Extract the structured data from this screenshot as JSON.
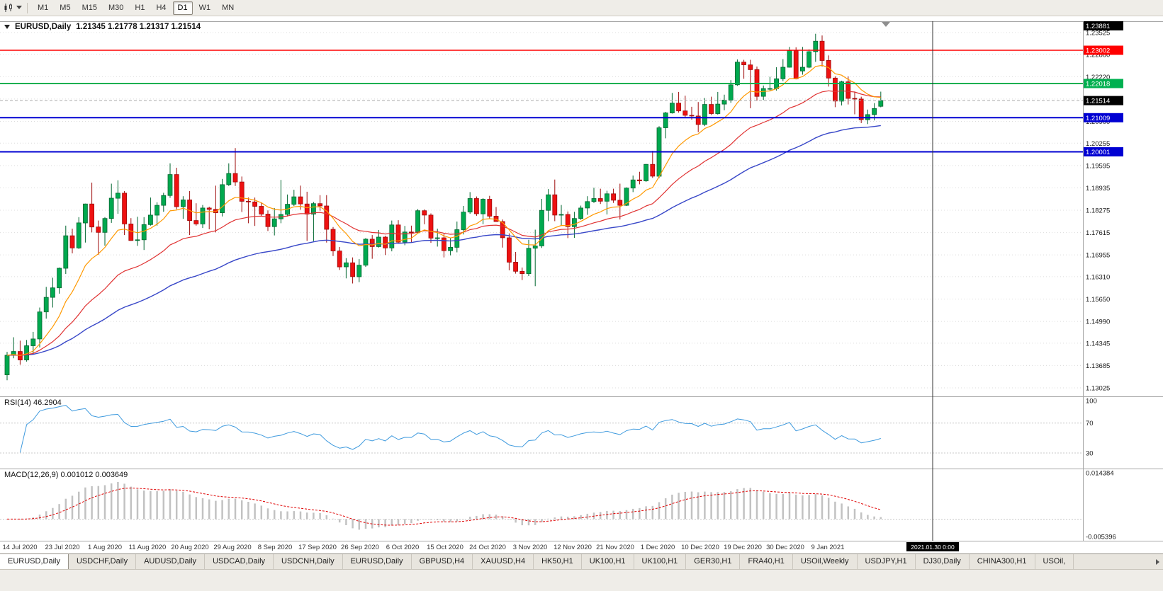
{
  "toolbar": {
    "timeframes": [
      "M1",
      "M5",
      "M15",
      "M30",
      "H1",
      "H4",
      "D1",
      "W1",
      "MN"
    ],
    "active_timeframe": "D1"
  },
  "chart_header": {
    "symbol_title": "EURUSD,Daily",
    "ohlc_text": "1.21345 1.21778 1.21317 1.21514"
  },
  "price_scale": {
    "top_badge": "1.23881",
    "current_price_badge": "1.21514"
  },
  "indicator_labels": {
    "rsi": "RSI(14) 46.2904",
    "macd": "MACD(12,26,9) 0.001012 0.003649",
    "rsi_scale": [
      "100",
      "70",
      "30"
    ],
    "macd_scale_top": "0.014384",
    "macd_scale_bottom": "-0.005396"
  },
  "event_marker": {
    "label": "2021.01.30 0:00"
  },
  "tabs": {
    "active_index": 0,
    "items": [
      "EURUSD,Daily",
      "USDCHF,Daily",
      "AUDUSD,Daily",
      "USDCAD,Daily",
      "USDCNH,Daily",
      "EURUSD,Daily",
      "GBPUSD,H4",
      "XAUUSD,H4",
      "HK50,H1",
      "UK100,H1",
      "UK100,H1",
      "GER30,H1",
      "FRA40,H1",
      "USOil,Weekly",
      "USDJPY,H1",
      "DJ30,Daily",
      "CHINA300,H1",
      "USOil,"
    ]
  },
  "theme": {
    "up": "#00A94F",
    "down": "#EE1111",
    "ma_fast": "#FF9900",
    "ma_mid": "#E03232",
    "ma_slow": "#3847C8",
    "rsi_line": "#3E9ADE",
    "macd_signal": "#DF0000",
    "macd_histogram": "#C2C2C2",
    "level_red": "#FF0000",
    "level_green": "#00B050",
    "level_blue": "#0000D2"
  },
  "chart_data": {
    "type": "candlestick",
    "symbol": "EURUSD",
    "timeframe": "Daily",
    "title_ohlc": {
      "open": 1.21345,
      "high": 1.21778,
      "low": 1.21317,
      "close": 1.21514
    },
    "current_price": 1.21514,
    "y_view_range": [
      1.1278,
      1.2392
    ],
    "y_tick_labels": [
      "1.23525",
      "1.22880",
      "1.22220",
      "1.21560",
      "1.20900",
      "1.20255",
      "1.19595",
      "1.18935",
      "1.18275",
      "1.17615",
      "1.16955",
      "1.16310",
      "1.15650",
      "1.14990",
      "1.14345",
      "1.13685",
      "1.13025"
    ],
    "x_tick_labels": [
      "14 Jul 2020",
      "23 Jul 2020",
      "1 Aug 2020",
      "11 Aug 2020",
      "20 Aug 2020",
      "29 Aug 2020",
      "8 Sep 2020",
      "17 Sep 2020",
      "26 Sep 2020",
      "6 Oct 2020",
      "15 Oct 2020",
      "24 Oct 2020",
      "3 Nov 2020",
      "12 Nov 2020",
      "21 Nov 2020",
      "1 Dec 2020",
      "10 Dec 2020",
      "19 Dec 2020",
      "30 Dec 2020",
      "9 Jan 2021"
    ],
    "level_lines": [
      {
        "label": "1.23002",
        "price": 1.23002,
        "color": "#FF0000",
        "width": 1.4
      },
      {
        "label": "1.22018",
        "price": 1.22018,
        "color": "#00B050",
        "width": 2
      },
      {
        "label": "1.21009",
        "price": 1.21009,
        "color": "#0000D2",
        "width": 2
      },
      {
        "label": "1.20001",
        "price": 1.20001,
        "color": "#0000D2",
        "width": 2
      }
    ],
    "indicators": {
      "rsi": {
        "period": 14,
        "current": 46.2904
      },
      "macd": {
        "fast": 12,
        "slow": 26,
        "signal": 9,
        "macd_current": 0.001012,
        "signal_current": 0.003649,
        "scale_max": 0.014384,
        "scale_min": -0.005396
      },
      "moving_averages": [
        {
          "type": "ema",
          "period": 10,
          "color": "#FF9900"
        },
        {
          "type": "ema",
          "period": 25,
          "color": "#E03232"
        },
        {
          "type": "ema",
          "period": 55,
          "color": "#3847C8"
        }
      ]
    },
    "candles": [
      [
        "2020-07-14",
        1.1341,
        1.1409,
        1.1325,
        1.1399
      ],
      [
        "2020-07-15",
        1.1399,
        1.1452,
        1.139,
        1.141
      ],
      [
        "2020-07-16",
        1.141,
        1.1442,
        1.1371,
        1.1385
      ],
      [
        "2020-07-17",
        1.1385,
        1.1444,
        1.138,
        1.1427
      ],
      [
        "2020-07-20",
        1.1427,
        1.1468,
        1.1402,
        1.1447
      ],
      [
        "2020-07-21",
        1.1447,
        1.154,
        1.1422,
        1.1527
      ],
      [
        "2020-07-22",
        1.1527,
        1.1601,
        1.1507,
        1.157
      ],
      [
        "2020-07-23",
        1.157,
        1.1628,
        1.154,
        1.1598
      ],
      [
        "2020-07-24",
        1.1598,
        1.1658,
        1.1581,
        1.1656
      ],
      [
        "2020-07-27",
        1.1656,
        1.1782,
        1.1639,
        1.1752
      ],
      [
        "2020-07-28",
        1.1752,
        1.1773,
        1.17,
        1.1716
      ],
      [
        "2020-07-29",
        1.1716,
        1.1807,
        1.1713,
        1.179
      ],
      [
        "2020-07-30",
        1.179,
        1.1847,
        1.1732,
        1.1846
      ],
      [
        "2020-07-31",
        1.1846,
        1.1909,
        1.1762,
        1.1778
      ],
      [
        "2020-08-03",
        1.1778,
        1.1797,
        1.1696,
        1.1762
      ],
      [
        "2020-08-04",
        1.1762,
        1.1807,
        1.1723,
        1.1803
      ],
      [
        "2020-08-05",
        1.1803,
        1.1906,
        1.179,
        1.1863
      ],
      [
        "2020-08-06",
        1.1863,
        1.1916,
        1.1817,
        1.1878
      ],
      [
        "2020-08-07",
        1.1878,
        1.1884,
        1.1754,
        1.1787
      ],
      [
        "2020-08-10",
        1.1787,
        1.1804,
        1.1737,
        1.1738
      ],
      [
        "2020-08-11",
        1.1738,
        1.1808,
        1.1722,
        1.174
      ],
      [
        "2020-08-12",
        1.174,
        1.1807,
        1.171,
        1.1785
      ],
      [
        "2020-08-13",
        1.1785,
        1.1865,
        1.1782,
        1.1813
      ],
      [
        "2020-08-14",
        1.1813,
        1.1851,
        1.1782,
        1.1842
      ],
      [
        "2020-08-17",
        1.1842,
        1.1879,
        1.1823,
        1.1871
      ],
      [
        "2020-08-18",
        1.1871,
        1.1966,
        1.1864,
        1.1933
      ],
      [
        "2020-08-19",
        1.1933,
        1.1953,
        1.183,
        1.1838
      ],
      [
        "2020-08-20",
        1.1838,
        1.1869,
        1.1802,
        1.1858
      ],
      [
        "2020-08-21",
        1.1858,
        1.1884,
        1.1754,
        1.1797
      ],
      [
        "2020-08-24",
        1.1797,
        1.1848,
        1.1782,
        1.1787
      ],
      [
        "2020-08-25",
        1.1787,
        1.1843,
        1.1775,
        1.1834
      ],
      [
        "2020-08-26",
        1.1834,
        1.1838,
        1.1771,
        1.183
      ],
      [
        "2020-08-27",
        1.183,
        1.19,
        1.1762,
        1.182
      ],
      [
        "2020-08-28",
        1.182,
        1.192,
        1.1809,
        1.1903
      ],
      [
        "2020-08-31",
        1.1903,
        1.1966,
        1.1899,
        1.1936
      ],
      [
        "2020-09-01",
        1.1936,
        1.2011,
        1.1899,
        1.1911
      ],
      [
        "2020-09-02",
        1.1911,
        1.1927,
        1.1822,
        1.1854
      ],
      [
        "2020-09-03",
        1.1854,
        1.1865,
        1.1789,
        1.1852
      ],
      [
        "2020-09-04",
        1.1852,
        1.1865,
        1.1781,
        1.1839
      ],
      [
        "2020-09-07",
        1.1839,
        1.1849,
        1.1809,
        1.1816
      ],
      [
        "2020-09-08",
        1.1816,
        1.1827,
        1.1766,
        1.1779
      ],
      [
        "2020-09-09",
        1.1779,
        1.1834,
        1.1753,
        1.1802
      ],
      [
        "2020-09-10",
        1.1802,
        1.1917,
        1.1789,
        1.1815
      ],
      [
        "2020-09-11",
        1.1815,
        1.1874,
        1.1809,
        1.1845
      ],
      [
        "2020-09-14",
        1.1845,
        1.1888,
        1.184,
        1.1867
      ],
      [
        "2020-09-15",
        1.1867,
        1.19,
        1.1829,
        1.1846
      ],
      [
        "2020-09-16",
        1.1846,
        1.1882,
        1.1737,
        1.1816
      ],
      [
        "2020-09-17",
        1.1816,
        1.1852,
        1.1736,
        1.1847
      ],
      [
        "2020-09-18",
        1.1847,
        1.1872,
        1.1826,
        1.184
      ],
      [
        "2020-09-21",
        1.184,
        1.1872,
        1.1732,
        1.1771
      ],
      [
        "2020-09-22",
        1.1771,
        1.1778,
        1.1692,
        1.1707
      ],
      [
        "2020-09-23",
        1.1707,
        1.1719,
        1.1651,
        1.166
      ],
      [
        "2020-09-24",
        1.166,
        1.1686,
        1.1626,
        1.1672
      ],
      [
        "2020-09-25",
        1.1672,
        1.1688,
        1.1611,
        1.1631
      ],
      [
        "2020-09-28",
        1.1631,
        1.1683,
        1.1615,
        1.1665
      ],
      [
        "2020-09-29",
        1.1665,
        1.1745,
        1.166,
        1.1742
      ],
      [
        "2020-09-30",
        1.1742,
        1.1754,
        1.1684,
        1.172
      ],
      [
        "2020-10-01",
        1.172,
        1.1769,
        1.1717,
        1.1748
      ],
      [
        "2020-10-02",
        1.1748,
        1.1752,
        1.1695,
        1.1716
      ],
      [
        "2020-10-05",
        1.1716,
        1.1797,
        1.1706,
        1.1784
      ],
      [
        "2020-10-06",
        1.1784,
        1.1798,
        1.173,
        1.1733
      ],
      [
        "2020-10-07",
        1.1733,
        1.1781,
        1.1724,
        1.1763
      ],
      [
        "2020-10-08",
        1.1763,
        1.1782,
        1.1732,
        1.1761
      ],
      [
        "2020-10-09",
        1.1761,
        1.1831,
        1.1759,
        1.1826
      ],
      [
        "2020-10-12",
        1.1826,
        1.183,
        1.1786,
        1.1813
      ],
      [
        "2020-10-13",
        1.1813,
        1.1818,
        1.1731,
        1.1745
      ],
      [
        "2020-10-14",
        1.1745,
        1.1773,
        1.172,
        1.1746
      ],
      [
        "2020-10-15",
        1.1746,
        1.1758,
        1.1688,
        1.1708
      ],
      [
        "2020-10-16",
        1.1708,
        1.1747,
        1.1694,
        1.1718
      ],
      [
        "2020-10-19",
        1.1718,
        1.1794,
        1.1703,
        1.177
      ],
      [
        "2020-10-20",
        1.177,
        1.184,
        1.1756,
        1.1822
      ],
      [
        "2020-10-21",
        1.1822,
        1.1881,
        1.1817,
        1.1862
      ],
      [
        "2020-10-22",
        1.1862,
        1.1868,
        1.1811,
        1.1817
      ],
      [
        "2020-10-23",
        1.1817,
        1.1863,
        1.1786,
        1.186
      ],
      [
        "2020-10-26",
        1.186,
        1.187,
        1.1803,
        1.181
      ],
      [
        "2020-10-27",
        1.181,
        1.1837,
        1.1793,
        1.1794
      ],
      [
        "2020-10-28",
        1.1794,
        1.18,
        1.1717,
        1.1746
      ],
      [
        "2020-10-29",
        1.1746,
        1.1759,
        1.165,
        1.1674
      ],
      [
        "2020-10-30",
        1.1674,
        1.1704,
        1.164,
        1.1647
      ],
      [
        "2020-11-02",
        1.1647,
        1.1658,
        1.1621,
        1.164
      ],
      [
        "2020-11-03",
        1.164,
        1.174,
        1.1633,
        1.1715
      ],
      [
        "2020-11-04",
        1.1715,
        1.177,
        1.1603,
        1.1722
      ],
      [
        "2020-11-05",
        1.1722,
        1.1861,
        1.1716,
        1.1827
      ],
      [
        "2020-11-06",
        1.1827,
        1.189,
        1.1795,
        1.1873
      ],
      [
        "2020-11-09",
        1.1873,
        1.1918,
        1.1795,
        1.1813
      ],
      [
        "2020-11-10",
        1.1813,
        1.1843,
        1.1781,
        1.1815
      ],
      [
        "2020-11-11",
        1.1815,
        1.1824,
        1.1745,
        1.1779
      ],
      [
        "2020-11-12",
        1.1779,
        1.1823,
        1.1746,
        1.1803
      ],
      [
        "2020-11-13",
        1.1803,
        1.1841,
        1.1799,
        1.1834
      ],
      [
        "2020-11-16",
        1.1834,
        1.1869,
        1.1814,
        1.1853
      ],
      [
        "2020-11-17",
        1.1853,
        1.1894,
        1.1849,
        1.1862
      ],
      [
        "2020-11-18",
        1.1862,
        1.1891,
        1.1846,
        1.1854
      ],
      [
        "2020-11-19",
        1.1854,
        1.1885,
        1.1815,
        1.1876
      ],
      [
        "2020-11-20",
        1.1876,
        1.1891,
        1.1849,
        1.1857
      ],
      [
        "2020-11-23",
        1.1857,
        1.1906,
        1.18,
        1.1842
      ],
      [
        "2020-11-24",
        1.1842,
        1.1895,
        1.184,
        1.1893
      ],
      [
        "2020-11-25",
        1.1893,
        1.193,
        1.1881,
        1.1917
      ],
      [
        "2020-11-26",
        1.1917,
        1.1941,
        1.1904,
        1.1914
      ],
      [
        "2020-11-27",
        1.1914,
        1.1964,
        1.1911,
        1.1963
      ],
      [
        "2020-11-30",
        1.1963,
        1.2003,
        1.1923,
        1.1928
      ],
      [
        "2020-12-01",
        1.1928,
        1.2076,
        1.1922,
        1.2071
      ],
      [
        "2020-12-02",
        1.2071,
        1.2118,
        1.204,
        1.2115
      ],
      [
        "2020-12-03",
        1.2115,
        1.2174,
        1.2113,
        1.2144
      ],
      [
        "2020-12-04",
        1.2144,
        1.2177,
        1.2116,
        1.2121
      ],
      [
        "2020-12-07",
        1.2121,
        1.2166,
        1.2103,
        1.2108
      ],
      [
        "2020-12-08",
        1.2108,
        1.2133,
        1.2095,
        1.2106
      ],
      [
        "2020-12-09",
        1.2106,
        1.2147,
        1.2058,
        1.2081
      ],
      [
        "2020-12-10",
        1.2081,
        1.2159,
        1.2076,
        1.214
      ],
      [
        "2020-12-11",
        1.214,
        1.2163,
        1.2109,
        1.2113
      ],
      [
        "2020-12-14",
        1.2113,
        1.2177,
        1.211,
        1.2141
      ],
      [
        "2020-12-15",
        1.2141,
        1.2169,
        1.2123,
        1.2153
      ],
      [
        "2020-12-16",
        1.2153,
        1.2212,
        1.2145,
        1.2198
      ],
      [
        "2020-12-17",
        1.2198,
        1.2273,
        1.2195,
        1.2265
      ],
      [
        "2020-12-18",
        1.2265,
        1.2272,
        1.2216,
        1.2257
      ],
      [
        "2020-12-21",
        1.2257,
        1.2272,
        1.2129,
        1.2243
      ],
      [
        "2020-12-22",
        1.2243,
        1.2252,
        1.2151,
        1.2164
      ],
      [
        "2020-12-23",
        1.2164,
        1.2196,
        1.2153,
        1.2187
      ],
      [
        "2020-12-24",
        1.2187,
        1.2222,
        1.218,
        1.2187
      ],
      [
        "2020-12-28",
        1.2187,
        1.225,
        1.2181,
        1.2216
      ],
      [
        "2020-12-29",
        1.2216,
        1.2274,
        1.2209,
        1.225
      ],
      [
        "2020-12-30",
        1.225,
        1.231,
        1.2249,
        1.2299
      ],
      [
        "2020-12-31",
        1.2299,
        1.2309,
        1.2214,
        1.2216
      ],
      [
        "2021-01-04",
        1.2239,
        1.231,
        1.2228,
        1.225
      ],
      [
        "2021-01-05",
        1.225,
        1.2303,
        1.2247,
        1.2296
      ],
      [
        "2021-01-06",
        1.2296,
        1.2349,
        1.2266,
        1.2327
      ],
      [
        "2021-01-07",
        1.2327,
        1.2344,
        1.2252,
        1.227
      ],
      [
        "2021-01-08",
        1.227,
        1.2285,
        1.2193,
        1.2218
      ],
      [
        "2021-01-11",
        1.2218,
        1.2223,
        1.2132,
        1.215
      ],
      [
        "2021-01-12",
        1.215,
        1.221,
        1.2137,
        1.2207
      ],
      [
        "2021-01-13",
        1.2207,
        1.2223,
        1.214,
        1.2158
      ],
      [
        "2021-01-14",
        1.2158,
        1.2178,
        1.2111,
        1.2156
      ],
      [
        "2021-01-15",
        1.2156,
        1.2163,
        1.2085,
        1.2095
      ],
      [
        "2021-01-18",
        1.2095,
        1.2125,
        1.2082,
        1.211
      ],
      [
        "2021-01-19",
        1.211,
        1.2144,
        1.2093,
        1.2128
      ],
      [
        "2021-01-20",
        1.21345,
        1.21778,
        1.21317,
        1.21514
      ]
    ]
  }
}
